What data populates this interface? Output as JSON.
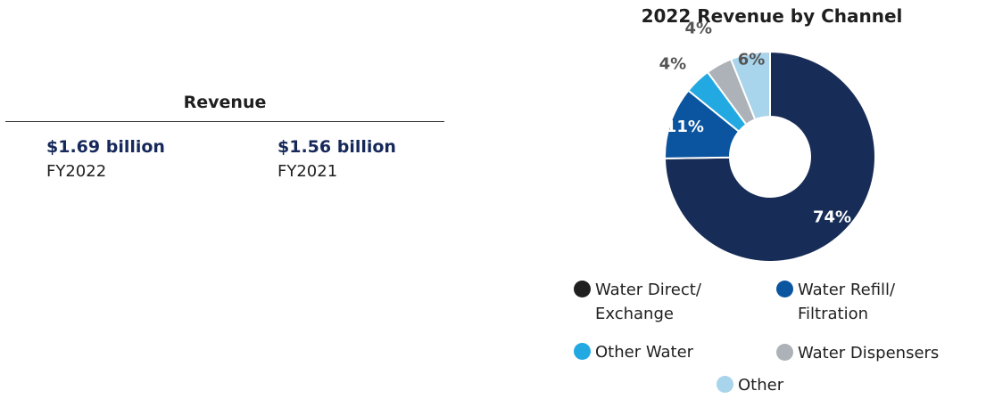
{
  "revenue": {
    "title": "Revenue",
    "items": [
      {
        "amount": "$1.69 billion",
        "year": "FY2022"
      },
      {
        "amount": "$1.56 billion",
        "year": "FY2021"
      }
    ]
  },
  "colors": {
    "dark_navy": "#172c56",
    "blue": "#0b549f",
    "light_blue": "#22a9e1",
    "gray": "#adb2b8",
    "pale_blue": "#a8d4ec"
  },
  "chart_data": {
    "type": "pie",
    "title": "2022 Revenue by Channel",
    "donut": true,
    "slices": [
      {
        "name": "Water Direct/ Exchange",
        "value": 74,
        "label": "74%",
        "color": "#172c56",
        "legend_color": "#1f1f1f"
      },
      {
        "name": "Water Refill/ Filtration",
        "value": 11,
        "label": "11%",
        "color": "#0b549f",
        "legend_color": "#0b549f"
      },
      {
        "name": "Other Water",
        "value": 4,
        "label": "4%",
        "color": "#22a9e1",
        "legend_color": "#22a9e1"
      },
      {
        "name": "Water Dispensers",
        "value": 4,
        "label": "4%",
        "color": "#adb2b8",
        "legend_color": "#adb2b8"
      },
      {
        "name": "Other",
        "value": 6,
        "label": "6%",
        "color": "#a8d4ec",
        "legend_color": "#a8d4ec"
      }
    ],
    "legend": {
      "items": [
        {
          "line1": "Water Direct/",
          "line2": "Exchange"
        },
        {
          "line1": "Water Refill/",
          "line2": "Filtration"
        },
        {
          "line1": "Other Water"
        },
        {
          "line1": "Water Dispensers"
        },
        {
          "line1": "Other"
        }
      ]
    }
  }
}
